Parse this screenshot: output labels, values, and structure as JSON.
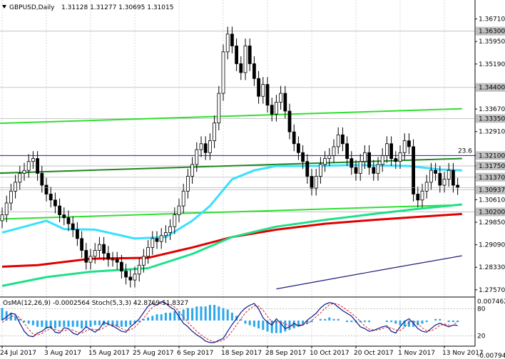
{
  "header": {
    "symbol": "GBPUSD,Daily",
    "ohlc": "1.31128 1.31277 1.30695 1.31015"
  },
  "chart_data": {
    "type": "candlestick",
    "price_axis": {
      "range": [
        1.2735,
        1.3735
      ],
      "ticks": [
        "1.36710",
        "1.35950",
        "1.35190",
        "1.34400",
        "1.33670",
        "1.32910",
        "1.32100",
        "1.31750",
        "1.31370",
        "1.30610",
        "1.29850",
        "1.29090",
        "1.28330",
        "1.27570"
      ],
      "highlighted": [
        {
          "value": 1.363,
          "label": "1.36300"
        },
        {
          "value": 1.344,
          "label": "1.34400"
        },
        {
          "value": 1.3335,
          "label": "1.33350"
        },
        {
          "value": 1.321,
          "label": "1.32100"
        },
        {
          "value": 1.3175,
          "label": "1.31750"
        },
        {
          "value": 1.3137,
          "label": "1.31370"
        },
        {
          "value": 1.3094,
          "label": "1.30937"
        },
        {
          "value": 1.302,
          "label": "1.30200"
        }
      ]
    },
    "time_axis": [
      "24 Jul 2017",
      "3 Aug 2017",
      "15 Aug 2017",
      "25 Aug 2017",
      "6 Sep 2017",
      "18 Sep 2017",
      "28 Sep 2017",
      "10 Oct 2017",
      "20 Oct 2017",
      "1 Nov 2017",
      "13 Nov 2017"
    ],
    "fib_level": {
      "label": "23.6",
      "value": 1.321
    },
    "closes": [
      1.301,
      1.305,
      1.309,
      1.312,
      1.315,
      1.316,
      1.319,
      1.32,
      1.315,
      1.311,
      1.308,
      1.306,
      1.304,
      1.301,
      1.3,
      1.298,
      1.296,
      1.293,
      1.289,
      1.285,
      1.287,
      1.289,
      1.291,
      1.288,
      1.286,
      1.286,
      1.285,
      1.282,
      1.28,
      1.279,
      1.281,
      1.284,
      1.287,
      1.29,
      1.293,
      1.292,
      1.294,
      1.295,
      1.297,
      1.301,
      1.304,
      1.309,
      1.314,
      1.318,
      1.323,
      1.325,
      1.322,
      1.326,
      1.332,
      1.342,
      1.356,
      1.362,
      1.358,
      1.352,
      1.349,
      1.358,
      1.352,
      1.347,
      1.341,
      1.345,
      1.338,
      1.335,
      1.339,
      1.342,
      1.336,
      1.329,
      1.325,
      1.322,
      1.319,
      1.314,
      1.31,
      1.314,
      1.318,
      1.32,
      1.321,
      1.324,
      1.328,
      1.325,
      1.32,
      1.317,
      1.315,
      1.319,
      1.322,
      1.317,
      1.315,
      1.318,
      1.321,
      1.325,
      1.32,
      1.319,
      1.322,
      1.326,
      1.324,
      1.308,
      1.306,
      1.309,
      1.312,
      1.316,
      1.315,
      1.311,
      1.313,
      1.316,
      1.311,
      1.3102
    ],
    "moving_averages": [
      {
        "color": "#39e0ff",
        "values": [
          [
            0,
            1.295
          ],
          [
            10,
            1.299
          ],
          [
            14,
            1.2962
          ],
          [
            21,
            1.296
          ],
          [
            30,
            1.293
          ],
          [
            37,
            1.2935
          ],
          [
            43,
            1.299
          ],
          [
            47,
            1.304
          ],
          [
            52,
            1.313
          ],
          [
            57,
            1.316
          ],
          [
            62,
            1.3175
          ],
          [
            70,
            1.3175
          ],
          [
            80,
            1.3178
          ],
          [
            92,
            1.3175
          ],
          [
            99,
            1.3163
          ],
          [
            104,
            1.316
          ]
        ]
      },
      {
        "color": "#e00000",
        "values": [
          [
            0,
            1.2835
          ],
          [
            8,
            1.284
          ],
          [
            20,
            1.2862
          ],
          [
            33,
            1.2865
          ],
          [
            43,
            1.29
          ],
          [
            52,
            1.2935
          ],
          [
            62,
            1.296
          ],
          [
            73,
            1.298
          ],
          [
            84,
            1.2993
          ],
          [
            94,
            1.3003
          ],
          [
            104,
            1.3013
          ]
        ]
      },
      {
        "color": "#1ee08a",
        "values": [
          [
            0,
            1.277
          ],
          [
            10,
            1.28
          ],
          [
            20,
            1.2818
          ],
          [
            33,
            1.283
          ],
          [
            43,
            1.2878
          ],
          [
            52,
            1.2935
          ],
          [
            62,
            1.297
          ],
          [
            73,
            1.2993
          ],
          [
            84,
            1.3013
          ],
          [
            94,
            1.303
          ],
          [
            104,
            1.3045
          ]
        ]
      },
      {
        "color": "#1e1e7a",
        "values": [
          [
            62,
            1.276
          ],
          [
            75,
            1.2795
          ],
          [
            88,
            1.283
          ],
          [
            104,
            1.2872
          ]
        ]
      }
    ],
    "trend_lines": [
      {
        "color": "#2ee02e",
        "from": [
          -2,
          1.3318
        ],
        "to": [
          104,
          1.3368
        ]
      },
      {
        "color": "#2ee02e",
        "from": [
          -2,
          1.2995
        ],
        "to": [
          104,
          1.3044
        ]
      },
      {
        "color": "#208820",
        "from": [
          -2,
          1.315
        ],
        "to": [
          104,
          1.32
        ]
      }
    ],
    "sub_window": {
      "title": "OsMA(12,26,9) -0.0002564  Stoch(5,3,3) 42.8769 51.8327",
      "ticks": [
        "0.0074625",
        "80",
        "20",
        "-0.0079488"
      ],
      "osma": [
        0.8,
        0.6,
        0.5,
        0.3,
        0.1,
        -0.1,
        -0.2,
        -0.3,
        -0.4,
        -0.4,
        -0.5,
        -0.5,
        -0.5,
        -0.4,
        -0.4,
        -0.4,
        -0.4,
        -0.4,
        -0.5,
        -0.4,
        -0.4,
        -0.3,
        -0.3,
        -0.3,
        -0.3,
        -0.4,
        -0.4,
        -0.4,
        -0.4,
        -0.3,
        -0.2,
        -0.1,
        0.1,
        0.2,
        0.3,
        0.4,
        0.4,
        0.5,
        0.5,
        0.6,
        0.6,
        0.7,
        0.8,
        0.8,
        0.9,
        0.9,
        0.9,
        1.0,
        1.0,
        0.9,
        0.8,
        0.7,
        0.5,
        0.3,
        0.1,
        -0.2,
        -0.3,
        -0.4,
        -0.5,
        -0.6,
        -0.7,
        -0.8,
        -0.8,
        -0.8,
        -0.7,
        -0.6,
        -0.5,
        -0.4,
        -0.3,
        -0.2,
        -0.1,
        0.0,
        0.1,
        0.1,
        0.2,
        0.1,
        0.1,
        0.0,
        -0.1,
        -0.1,
        -0.1,
        -0.1,
        -0.1,
        -0.1,
        0.0,
        0.0,
        0.0,
        -0.1,
        -0.1,
        -0.2,
        -0.3,
        -0.4,
        -0.4,
        -0.4,
        -0.3,
        -0.2,
        -0.1,
        0.0,
        0.1,
        0.1,
        0.0,
        -0.1,
        -0.1,
        -0.1
      ],
      "stoch_main": [
        55,
        62,
        70,
        68,
        48,
        30,
        20,
        18,
        26,
        30,
        38,
        40,
        28,
        26,
        38,
        36,
        26,
        22,
        30,
        40,
        34,
        28,
        36,
        50,
        46,
        42,
        36,
        30,
        28,
        40,
        48,
        58,
        72,
        86,
        92,
        88,
        96,
        92,
        84,
        78,
        62,
        48,
        40,
        30,
        22,
        16,
        8,
        5,
        5,
        10,
        14,
        30,
        45,
        58,
        72,
        82,
        88,
        92,
        80,
        60,
        50,
        44,
        58,
        48,
        36,
        40,
        48,
        42,
        44,
        55,
        62,
        70,
        82,
        90,
        94,
        92,
        84,
        76,
        70,
        64,
        52,
        40,
        36,
        30,
        32,
        36,
        40,
        42,
        30,
        26,
        40,
        52,
        58,
        48,
        36,
        30,
        28,
        36,
        44,
        48,
        44,
        40,
        44,
        43
      ],
      "stoch_signal": [
        50,
        56,
        62,
        66,
        60,
        48,
        34,
        24,
        22,
        25,
        32,
        36,
        34,
        31,
        31,
        34,
        33,
        28,
        26,
        31,
        35,
        34,
        33,
        38,
        44,
        46,
        42,
        36,
        32,
        33,
        39,
        49,
        59,
        72,
        84,
        89,
        92,
        92,
        90,
        84,
        74,
        62,
        50,
        40,
        30,
        22,
        15,
        10,
        6,
        7,
        10,
        18,
        30,
        44,
        58,
        71,
        80,
        87,
        86,
        77,
        63,
        51,
        51,
        50,
        47,
        41,
        42,
        44,
        45,
        47,
        54,
        62,
        71,
        81,
        89,
        92,
        90,
        84,
        77,
        70,
        62,
        52,
        42,
        35,
        33,
        33,
        36,
        39,
        37,
        33,
        32,
        39,
        50,
        53,
        47,
        38,
        31,
        31,
        36,
        43,
        46,
        44,
        43,
        52
      ]
    }
  }
}
